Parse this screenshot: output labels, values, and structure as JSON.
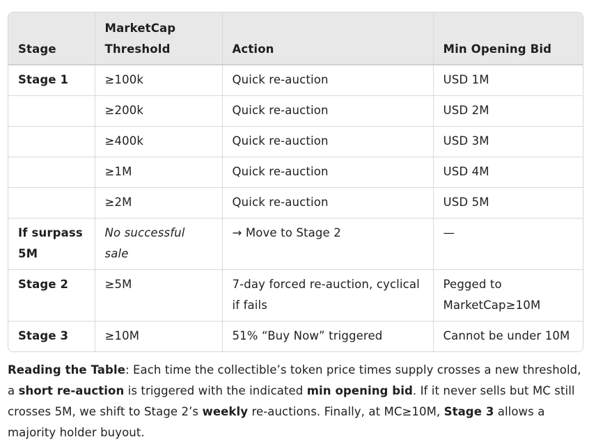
{
  "table": {
    "headers": [
      "Stage",
      "MarketCap Threshold",
      "Action",
      "Min Opening Bid"
    ],
    "rows": [
      [
        "Stage 1",
        "≥100k",
        "Quick re-auction",
        "USD 1M"
      ],
      [
        "",
        "≥200k",
        "Quick re-auction",
        "USD 2M"
      ],
      [
        "",
        "≥400k",
        "Quick re-auction",
        "USD 3M"
      ],
      [
        "",
        "≥1M",
        "Quick re-auction",
        "USD 4M"
      ],
      [
        "",
        "≥2M",
        "Quick re-auction",
        "USD 5M"
      ],
      [
        "If surpass 5M",
        "No successful sale",
        "→ Move to Stage 2",
        "—"
      ],
      [
        "Stage 2",
        "≥5M",
        "7-day forced re-auction, cyclical if fails",
        "Pegged to MarketCap≥10M"
      ],
      [
        "Stage 3",
        "≥10M",
        "51% “Buy Now” triggered",
        "Cannot be under 10M"
      ]
    ]
  },
  "note": {
    "lead": "Reading the Table",
    "t1": ": Each time the collectible’s token price times supply crosses a new threshold, a ",
    "b1": "short re-auction",
    "t2": " is triggered with the indicated ",
    "b2": "min opening bid",
    "t3": ". If it never sells but MC still crosses 5M, we shift to Stage 2’s ",
    "b3": "weekly",
    "t4": " re-auctions. Finally, at MC≥10M, ",
    "b4": "Stage 3",
    "t5": " allows a majority holder buyout."
  }
}
